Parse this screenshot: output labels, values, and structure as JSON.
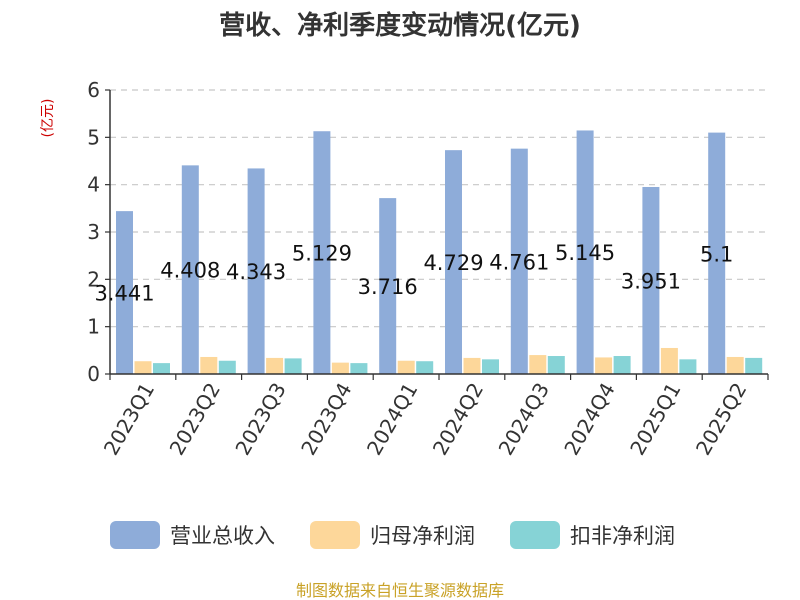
{
  "chart_data": {
    "type": "bar",
    "title": "营收、净利季度变动情况(亿元)",
    "unit_label": "(亿元)",
    "categories": [
      "2023Q1",
      "2023Q2",
      "2023Q3",
      "2023Q4",
      "2024Q1",
      "2024Q2",
      "2024Q3",
      "2024Q4",
      "2025Q1",
      "2025Q2"
    ],
    "ylim": [
      0,
      6
    ],
    "yticks": [
      0,
      1,
      2,
      3,
      4,
      5,
      6
    ],
    "grid": true,
    "legend_position": "bottom",
    "series": [
      {
        "name": "营业总收入",
        "color": "#8eacd9",
        "values": [
          3.441,
          4.408,
          4.343,
          5.129,
          3.716,
          4.729,
          4.761,
          5.145,
          3.951,
          5.1
        ],
        "labels": [
          "3.441",
          "4.408",
          "4.343",
          "5.129",
          "3.716",
          "4.729",
          "4.761",
          "5.145",
          "3.951",
          "5.1"
        ]
      },
      {
        "name": "归母净利润",
        "color": "#fdd79a",
        "values": [
          0.27,
          0.36,
          0.34,
          0.24,
          0.28,
          0.34,
          0.4,
          0.35,
          0.55,
          0.36
        ]
      },
      {
        "name": "扣非净利润",
        "color": "#86d3d6",
        "values": [
          0.23,
          0.28,
          0.33,
          0.23,
          0.27,
          0.31,
          0.38,
          0.38,
          0.31,
          0.34
        ]
      }
    ]
  },
  "footer": {
    "source": "制图数据来自恒生聚源数据库"
  }
}
